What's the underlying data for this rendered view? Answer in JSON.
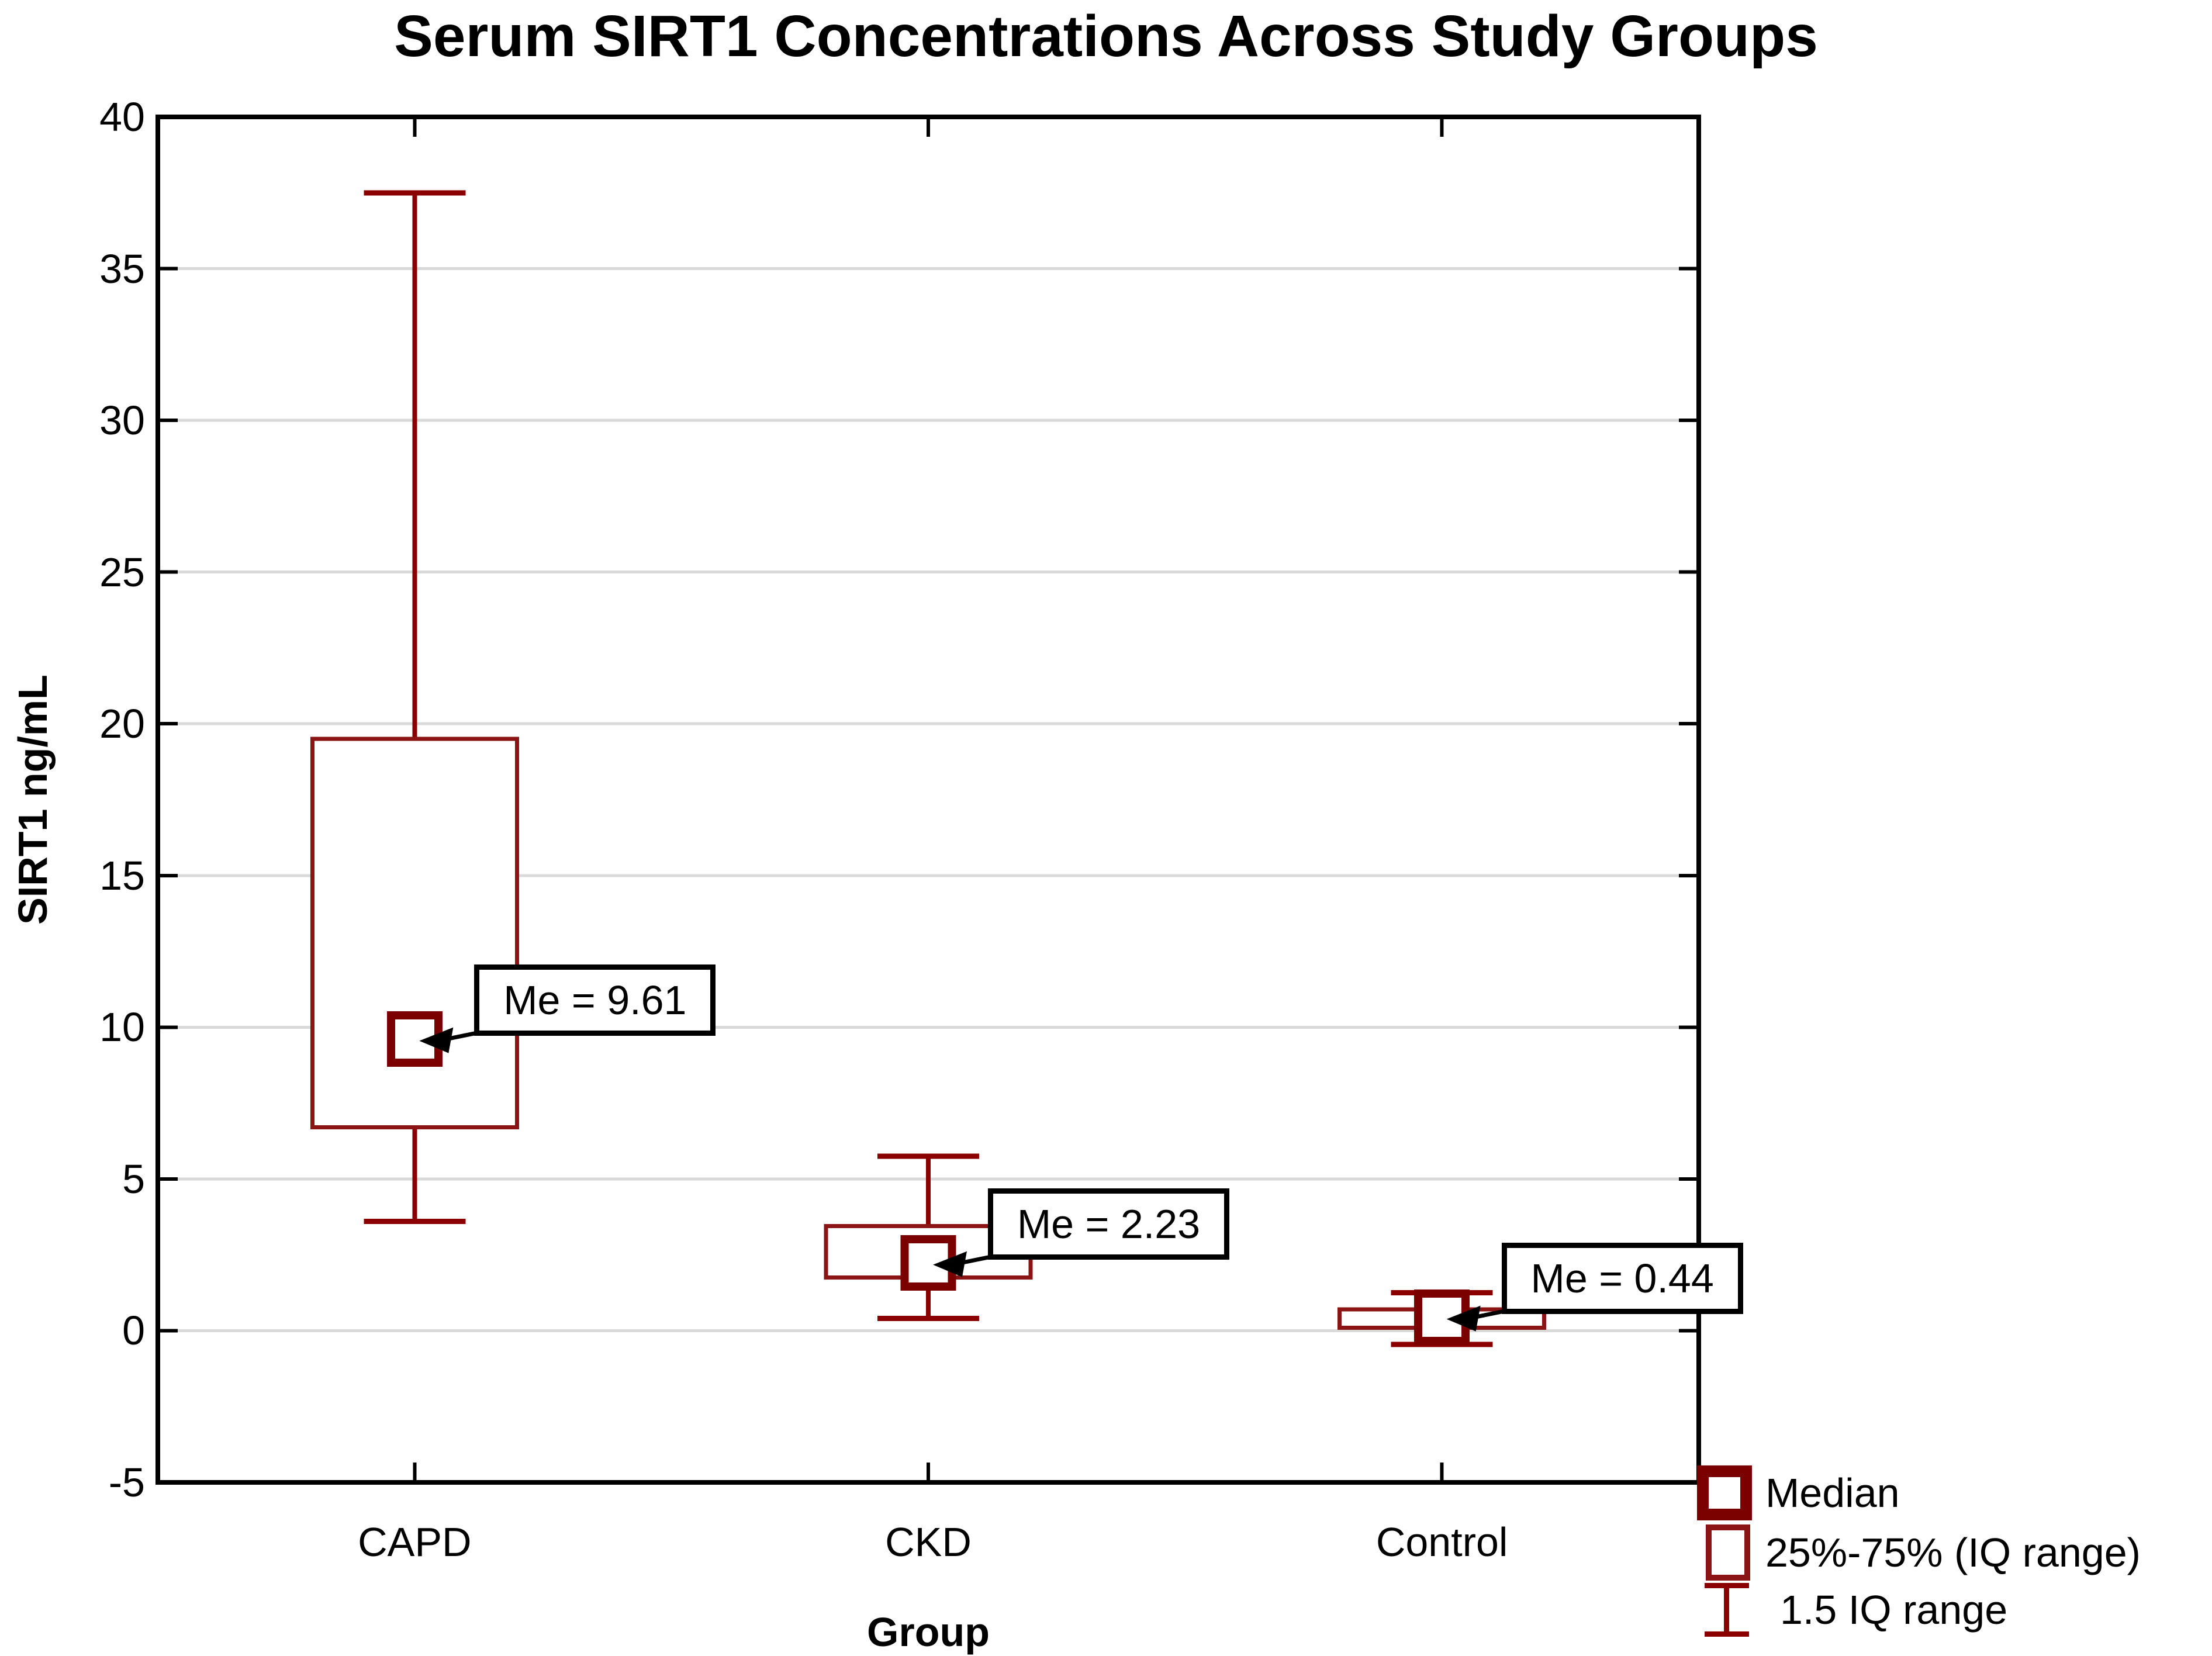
{
  "chart_data": {
    "type": "box",
    "title": "Serum SIRT1 Concentrations Across Study Groups",
    "xlabel": "Group",
    "ylabel": "SIRT1 ng/mL",
    "ylim": [
      -5,
      40
    ],
    "yticks": [
      -5,
      0,
      5,
      10,
      15,
      20,
      25,
      30,
      35,
      40
    ],
    "gridlines_at": [
      0,
      5,
      10,
      15,
      20,
      25,
      30,
      35
    ],
    "grid": true,
    "legend_position": "bottom-right",
    "categories": [
      "CAPD",
      "CKD",
      "Control"
    ],
    "series": [
      {
        "group": "CAPD",
        "median": 9.61,
        "q1": 6.7,
        "q3": 19.5,
        "whisker_low": 3.6,
        "whisker_high": 37.5,
        "annotation": "Me = 9.61"
      },
      {
        "group": "CKD",
        "median": 2.23,
        "q1": 1.75,
        "q3": 3.45,
        "whisker_low": 0.4,
        "whisker_high": 5.75,
        "annotation": "Me = 2.23"
      },
      {
        "group": "Control",
        "median": 0.44,
        "q1": 0.1,
        "q3": 0.7,
        "whisker_low": -0.45,
        "whisker_high": 1.25,
        "annotation": "Me = 0.44"
      }
    ],
    "legend": [
      {
        "icon": "median-square-icon",
        "label": "Median"
      },
      {
        "icon": "iq-range-box-icon",
        "label": "25%-75% (IQ range)"
      },
      {
        "icon": "whisker-range-icon",
        "label": "1.5 IQ range"
      }
    ],
    "colors": {
      "whisker": "#8b0000",
      "iq_box": "#8b1414",
      "median_marker": "#7b0000",
      "gridline": "#d9d9d9",
      "frame": "#000000",
      "text": "#000000",
      "annotation_border": "#000000",
      "annotation_background": "#ffffff",
      "background": "#ffffff"
    }
  }
}
